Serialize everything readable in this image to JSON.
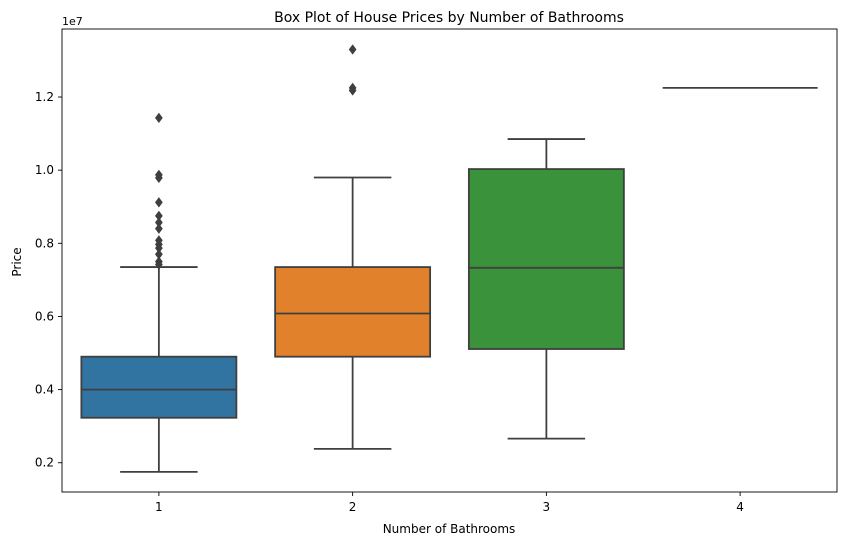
{
  "chart_data": {
    "type": "box",
    "title": "Box Plot of House Prices by Number of Bathrooms",
    "xlabel": "Number of Bathrooms",
    "ylabel": "Price",
    "y_offset_label": "1e7",
    "ylim": [
      0.12,
      1.386
    ],
    "yticks": [
      0.2,
      0.4,
      0.6,
      0.8,
      1.0,
      1.2
    ],
    "ytick_labels": [
      "0.2",
      "0.4",
      "0.6",
      "0.8",
      "1.0",
      "1.2"
    ],
    "categories": [
      "1",
      "2",
      "3",
      "4"
    ],
    "grid": false,
    "boxes": [
      {
        "category": "1",
        "color": "#3274a1",
        "whisker_low": 0.175,
        "q1": 0.323,
        "median": 0.4,
        "q3": 0.49,
        "whisker_high": 0.735,
        "outliers": [
          1.143,
          0.987,
          0.979,
          0.912,
          0.875,
          0.857,
          0.84,
          0.808,
          0.797,
          0.787,
          0.77,
          0.75,
          0.742
        ]
      },
      {
        "category": "2",
        "color": "#e1812c",
        "whisker_low": 0.238,
        "q1": 0.49,
        "median": 0.608,
        "q3": 0.735,
        "whisker_high": 0.98,
        "outliers": [
          1.33,
          1.225,
          1.218
        ]
      },
      {
        "category": "3",
        "color": "#3a923a",
        "whisker_low": 0.266,
        "q1": 0.511,
        "median": 0.733,
        "q3": 1.003,
        "whisker_high": 1.085,
        "outliers": []
      },
      {
        "category": "4",
        "color": "#c03d3e",
        "whisker_low": 1.225,
        "q1": 1.225,
        "median": 1.225,
        "q3": 1.225,
        "whisker_high": 1.225,
        "outliers": []
      }
    ]
  }
}
